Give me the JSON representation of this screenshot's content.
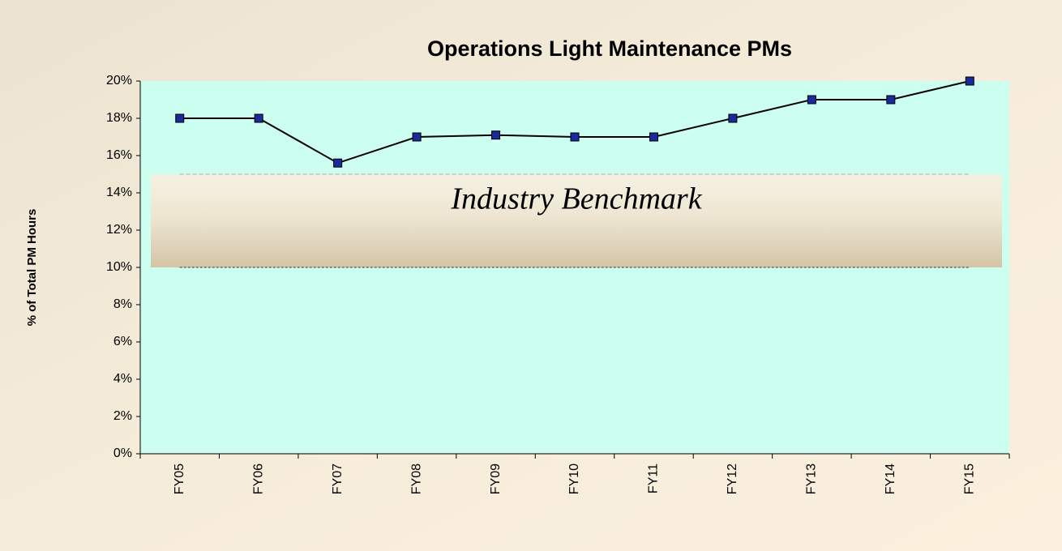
{
  "chart_data": {
    "type": "line",
    "title": "Operations Light Maintenance PMs",
    "ylabel": "% of Total PM Hours",
    "categories": [
      "FY05",
      "FY06",
      "FY07",
      "FY08",
      "FY09",
      "FY10",
      "FY11",
      "FY12",
      "FY13",
      "FY14",
      "FY15"
    ],
    "values": [
      18,
      18,
      15.6,
      17,
      17.1,
      17,
      17,
      18,
      19,
      19,
      20
    ],
    "color": "#000000",
    "marker_color": "#1a2a9a",
    "ylim": [
      0,
      20
    ],
    "yticks": [
      {
        "value": 0,
        "label": "0%"
      },
      {
        "value": 2,
        "label": "2%"
      },
      {
        "value": 4,
        "label": "4%"
      },
      {
        "value": 6,
        "label": "6%"
      },
      {
        "value": 8,
        "label": "8%"
      },
      {
        "value": 10,
        "label": "10%"
      },
      {
        "value": 12,
        "label": "12%"
      },
      {
        "value": 14,
        "label": "14%"
      },
      {
        "value": 16,
        "label": "16%"
      },
      {
        "value": 18,
        "label": "18%"
      },
      {
        "value": 20,
        "label": "20%"
      }
    ],
    "grid": false,
    "benchmark": {
      "label": "Industry Benchmark",
      "range": [
        10,
        15
      ]
    }
  }
}
